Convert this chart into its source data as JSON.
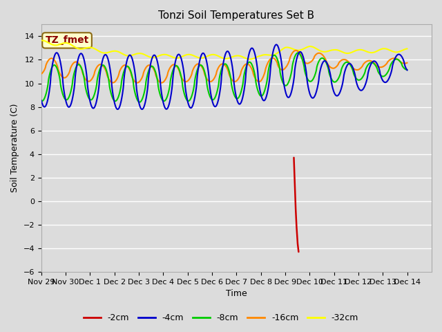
{
  "title": "Tonzi Soil Temperatures Set B",
  "xlabel": "Time",
  "ylabel": "Soil Temperature (C)",
  "ylim": [
    -6,
    15
  ],
  "yticks": [
    -6,
    -4,
    -2,
    0,
    2,
    4,
    6,
    8,
    10,
    12,
    14
  ],
  "bg_color": "#dcdcdc",
  "grid_color": "#ffffff",
  "colors": {
    "2cm": "#cc0000",
    "4cm": "#0000cc",
    "8cm": "#00cc00",
    "16cm": "#ff8800",
    "32cm": "#ffff00"
  },
  "annotation_box": {
    "text": "TZ_fmet",
    "fontsize": 10,
    "text_color": "#8b0000",
    "box_color": "#ffffcc",
    "border_color": "#8b6914"
  },
  "xlim": [
    -2,
    14
  ],
  "tick_fontsize": 8,
  "title_fontsize": 11
}
